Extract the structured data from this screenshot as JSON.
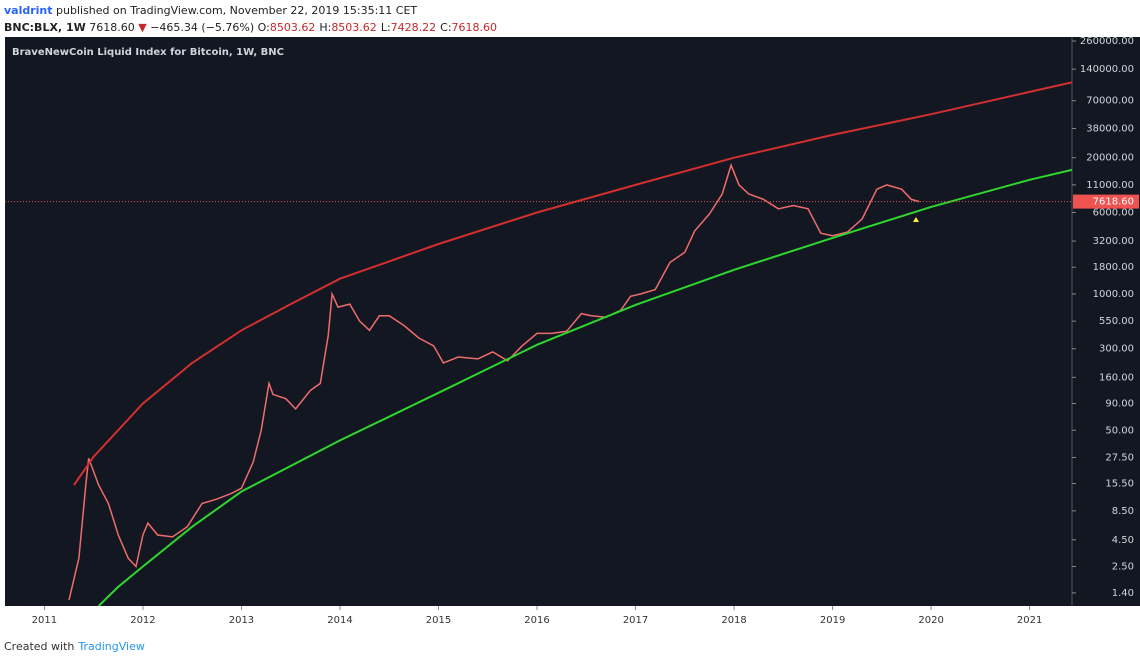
{
  "header": {
    "author": "valdrint",
    "published": "published on TradingView.com, November 22, 2019 15:35:11 CET",
    "symbol": "BNC:BLX, 1W",
    "price": "7618.60",
    "change": "−465.34 (−5.76%)",
    "quotes": [
      {
        "label": "O:",
        "value": "8503.62"
      },
      {
        "label": "H:",
        "value": "8503.62"
      },
      {
        "label": "L:",
        "value": "7428.22"
      },
      {
        "label": "C:",
        "value": "7618.60"
      }
    ]
  },
  "footer": {
    "created": "Created with",
    "brand": "TradingView"
  },
  "chart_data": {
    "type": "line",
    "title": "BraveNewCoin Liquid Index for Bitcoin, 1W, BNC",
    "log_scale": true,
    "grid": false,
    "xlim": [
      2010.6,
      2021.43
    ],
    "xticks": [
      2011,
      2012,
      2013,
      2014,
      2015,
      2016,
      2017,
      2018,
      2019,
      2020,
      2021
    ],
    "ylim": [
      1.05,
      284000
    ],
    "yticks": [
      {
        "value": 260000,
        "label": "260000.00"
      },
      {
        "value": 140000,
        "label": "140000.00"
      },
      {
        "value": 70000,
        "label": "70000.00"
      },
      {
        "value": 38000,
        "label": "38000.00"
      },
      {
        "value": 20000,
        "label": "20000.00"
      },
      {
        "value": 11000,
        "label": "11000.00"
      },
      {
        "value": 6000,
        "label": "6000.00"
      },
      {
        "value": 3200,
        "label": "3200.00"
      },
      {
        "value": 1800,
        "label": "1800.00"
      },
      {
        "value": 1000,
        "label": "1000.00"
      },
      {
        "value": 550,
        "label": "550.00"
      },
      {
        "value": 300,
        "label": "300.00"
      },
      {
        "value": 160,
        "label": "160.00"
      },
      {
        "value": 90,
        "label": "90.00"
      },
      {
        "value": 50,
        "label": "50.00"
      },
      {
        "value": 27.5,
        "label": "27.50"
      },
      {
        "value": 15.5,
        "label": "15.50"
      },
      {
        "value": 8.5,
        "label": "8.50"
      },
      {
        "value": 4.5,
        "label": "4.50"
      },
      {
        "value": 2.5,
        "label": "2.50"
      },
      {
        "value": 1.4,
        "label": "1.40"
      }
    ],
    "last_price": {
      "value": 7618.6,
      "label": "7618.60"
    },
    "series": [
      {
        "color": "#ef6c6c",
        "x": [
          2011.25,
          2011.35,
          2011.42,
          2011.45,
          2011.55,
          2011.65,
          2011.75,
          2011.85,
          2011.93,
          2012.0,
          2012.05,
          2012.15,
          2012.3,
          2012.45,
          2012.6,
          2012.75,
          2012.9,
          2013.0,
          2013.12,
          2013.2,
          2013.28,
          2013.32,
          2013.45,
          2013.55,
          2013.7,
          2013.8,
          2013.88,
          2013.92,
          2013.98,
          2014.1,
          2014.2,
          2014.3,
          2014.4,
          2014.5,
          2014.65,
          2014.8,
          2014.95,
          2015.05,
          2015.2,
          2015.4,
          2015.55,
          2015.7,
          2015.85,
          2016.0,
          2016.15,
          2016.3,
          2016.45,
          2016.55,
          2016.7,
          2016.85,
          2016.95,
          2017.05,
          2017.2,
          2017.35,
          2017.5,
          2017.6,
          2017.75,
          2017.88,
          2017.97,
          2018.05,
          2018.15,
          2018.3,
          2018.45,
          2018.6,
          2018.75,
          2018.88,
          2019.0,
          2019.15,
          2019.3,
          2019.45,
          2019.55,
          2019.7,
          2019.8,
          2019.88
        ],
        "values": [
          1.2,
          3,
          15,
          27,
          15,
          10,
          5,
          3,
          2.5,
          5,
          6.5,
          5,
          4.8,
          6,
          10,
          11,
          12.5,
          14,
          25,
          50,
          140,
          110,
          100,
          80,
          120,
          140,
          400,
          1000,
          750,
          800,
          550,
          450,
          620,
          620,
          500,
          380,
          320,
          220,
          250,
          240,
          280,
          230,
          320,
          420,
          420,
          440,
          650,
          620,
          600,
          700,
          950,
          1000,
          1100,
          2000,
          2500,
          4000,
          5800,
          9000,
          17000,
          11000,
          9000,
          8000,
          6500,
          7000,
          6500,
          3800,
          3600,
          3900,
          5200,
          10000,
          11000,
          10000,
          8000,
          7618.6
        ]
      },
      {
        "color": "#d32f2f",
        "x": [
          2011.3,
          2011.5,
          2012,
          2012.5,
          2013,
          2013.5,
          2014,
          2015,
          2016,
          2017,
          2018,
          2019,
          2020,
          2021,
          2021.43
        ],
        "values": [
          15,
          28,
          90,
          220,
          450,
          800,
          1400,
          3000,
          6000,
          11000,
          20000,
          33000,
          52000,
          85000,
          105000
        ]
      },
      {
        "color": "#2ed62e",
        "x": [
          2011.55,
          2011.75,
          2012,
          2012.5,
          2013,
          2014,
          2015,
          2016,
          2017,
          2018,
          2019,
          2020,
          2021,
          2021.43
        ],
        "values": [
          1.05,
          1.6,
          2.5,
          6,
          13,
          40,
          114,
          327,
          787,
          1700,
          3430,
          6780,
          12300,
          15300
        ]
      }
    ]
  }
}
